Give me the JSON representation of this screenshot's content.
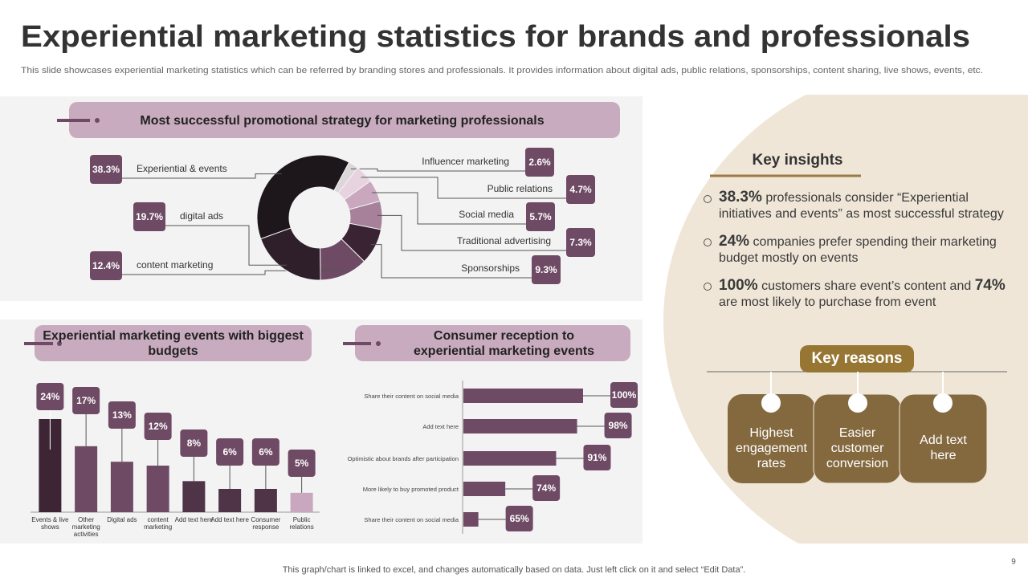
{
  "header": {
    "title": "Experiential marketing statistics for brands and professionals",
    "subtitle": "This slide showcases experiential marketing statistics which can be referred by branding stores and professionals. It provides information about digital ads, public relations, sponsorships, content sharing, live shows, events, etc."
  },
  "chart_data": [
    {
      "type": "donut",
      "title": "Most successful promotional strategy for marketing professionals",
      "categories": [
        "Influencer marketing",
        "Public relations",
        "Social media",
        "Traditional advertising",
        "Sponsorships",
        "content marketing",
        "digital ads",
        "Experiential & events"
      ],
      "values": [
        2.6,
        4.7,
        5.7,
        7.3,
        9.3,
        12.4,
        19.7,
        38.3
      ],
      "value_labels": [
        "2.6%",
        "4.7%",
        "5.7%",
        "7.3%",
        "9.3%",
        "12.4%",
        "19.7%",
        "38.3%"
      ],
      "colors": [
        "#dcd6d9",
        "#e6d3df",
        "#c9a8bf",
        "#a68199",
        "#3a2433",
        "#6e4a64",
        "#2f1f2b",
        "#1d171b"
      ]
    },
    {
      "type": "bar",
      "title": "Experiential marketing events with biggest budgets",
      "categories": [
        "Events & live shows",
        "Other marketing activities",
        "Digital ads",
        "content marketing",
        "Add text here",
        "Add text here",
        "Consumer response",
        "Public relations"
      ],
      "values": [
        24,
        17,
        13,
        12,
        8,
        6,
        6,
        5
      ],
      "value_labels": [
        "24%",
        "17%",
        "13%",
        "12%",
        "8%",
        "6%",
        "6%",
        "5%"
      ],
      "colors": [
        "#3d2535",
        "#6e4a64",
        "#6e4a64",
        "#6e4a64",
        "#4f3347",
        "#4f3347",
        "#4f3347",
        "#c9a8bf"
      ],
      "ylim": [
        0,
        30
      ]
    },
    {
      "type": "hbar",
      "title": "Consumer reception to experiential marketing events",
      "categories": [
        "Share their content on social media",
        "Add text here",
        "Optimistic about brands after participation",
        "More likely to buy promoted product",
        "Share their content on social media"
      ],
      "values": [
        100,
        98,
        91,
        74,
        65
      ],
      "value_labels": [
        "100%",
        "98%",
        "91%",
        "74%",
        "65%"
      ],
      "color": "#6e4a64",
      "xlim": [
        60,
        100
      ]
    }
  ],
  "key_insights": {
    "title": "Key insights",
    "items": [
      {
        "value": "38.3%",
        "text": "professionals consider “Experiential initiatives and events” as most successful strategy"
      },
      {
        "value": "24%",
        "text": "companies prefer spending their marketing budget mostly on events"
      },
      {
        "value": "100%",
        "text": "customers share event’s content and",
        "value2": "74%",
        "text2": "are most likely to purchase from event"
      }
    ]
  },
  "key_reasons": {
    "title": "Key reasons",
    "items": [
      "Highest engagement rates",
      "Easier customer conversion",
      "Add text here"
    ]
  },
  "footer": {
    "note": "This graph/chart is linked to excel,  and changes automatically based on data. Just left click on it and select “Edit Data”.",
    "page_number": 9
  }
}
